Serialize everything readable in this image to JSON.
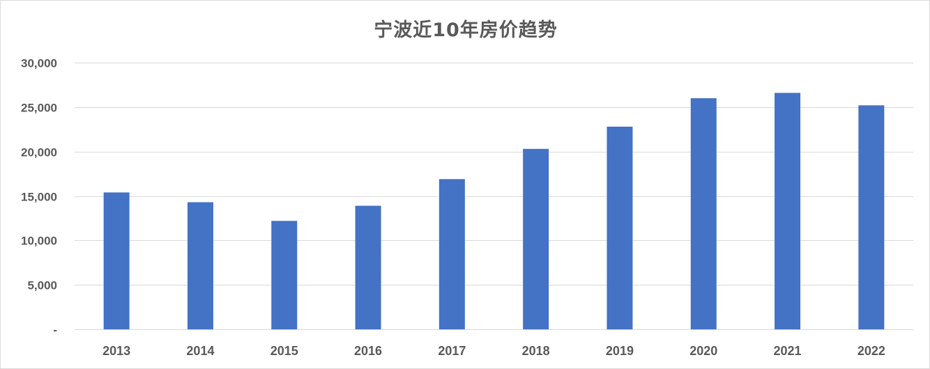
{
  "chart_data": {
    "type": "bar",
    "title": "宁波近10年房价趋势",
    "xlabel": "",
    "ylabel": "",
    "categories": [
      "2013",
      "2014",
      "2015",
      "2016",
      "2017",
      "2018",
      "2019",
      "2020",
      "2021",
      "2022"
    ],
    "values": [
      15400,
      14300,
      12200,
      13900,
      16900,
      20300,
      22800,
      26000,
      26600,
      25200
    ],
    "ylim": [
      0,
      30000
    ],
    "yticks": [
      0,
      5000,
      10000,
      15000,
      20000,
      25000,
      30000
    ],
    "ytick_labels": [
      "-",
      "5,000",
      "10,000",
      "15,000",
      "20,000",
      "25,000",
      "30,000"
    ],
    "grid": true,
    "legend": "none",
    "bar_color": "#4472c4",
    "grid_color": "#d9d9d9",
    "label_color": "#595959"
  }
}
